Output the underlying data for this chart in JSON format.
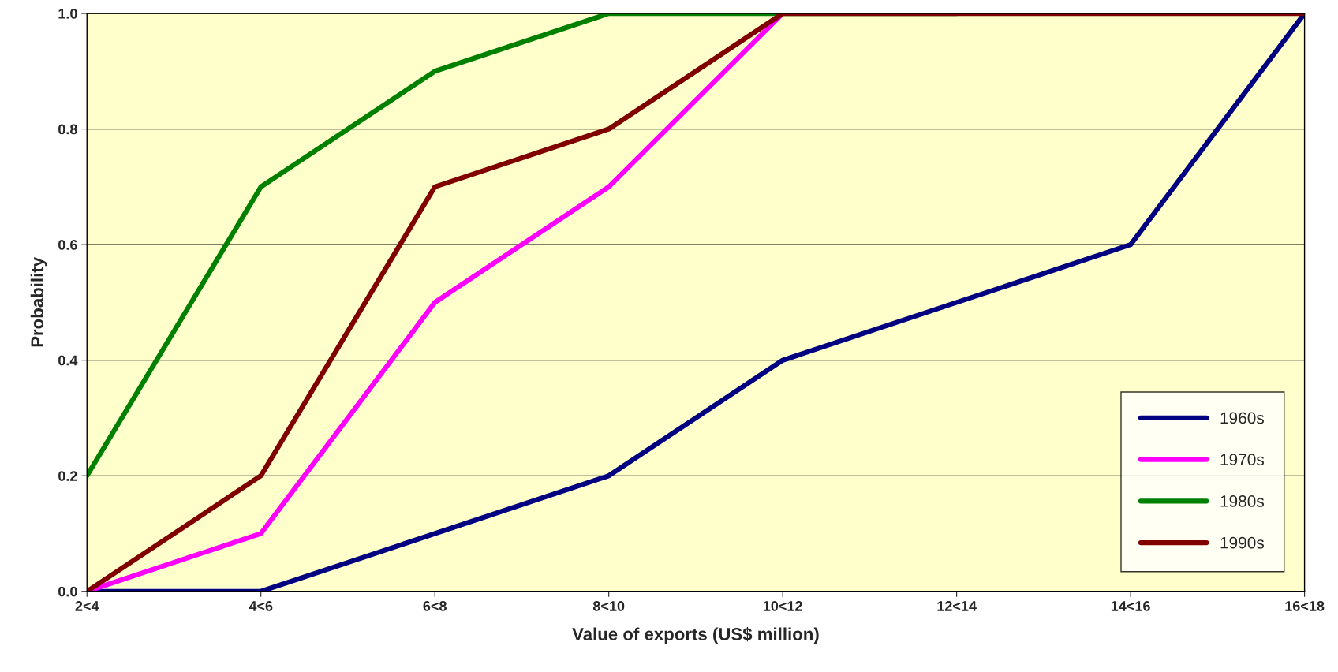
{
  "chart_data": {
    "type": "line",
    "xlabel": "Value of exports (US$ million)",
    "ylabel": "Probability",
    "categories": [
      "2<4",
      "4<6",
      "6<8",
      "8<10",
      "10<12",
      "12<14",
      "14<16",
      "16<18"
    ],
    "series": [
      {
        "name": "1960s",
        "color": "#000080",
        "values": [
          0,
          0,
          0.1,
          0.2,
          0.4,
          0.5,
          0.6,
          1.0
        ]
      },
      {
        "name": "1970s",
        "color": "#ff00ff",
        "values": [
          0,
          0.1,
          0.5,
          0.7,
          1.0,
          null,
          null,
          null
        ]
      },
      {
        "name": "1980s",
        "color": "#008000",
        "values": [
          0.2,
          0.7,
          0.9,
          1.0,
          1.0,
          1.0,
          null,
          null
        ]
      },
      {
        "name": "1990s",
        "color": "#800000",
        "values": [
          0,
          0.2,
          0.7,
          0.8,
          1.0,
          1.0,
          1.0,
          1.0
        ]
      }
    ],
    "ylim": [
      0,
      1
    ],
    "yticks": [
      {
        "value": 0,
        "label": "0.0"
      },
      {
        "value": 0.2,
        "label": "0.2"
      },
      {
        "value": 0.4,
        "label": "0.4"
      },
      {
        "value": 0.6,
        "label": "0.6"
      },
      {
        "value": 0.8,
        "label": "0.8"
      },
      {
        "value": 1,
        "label": "1.0"
      }
    ],
    "grid": "y",
    "legend": "bottom right",
    "marker": "none",
    "line_style": "solid"
  }
}
